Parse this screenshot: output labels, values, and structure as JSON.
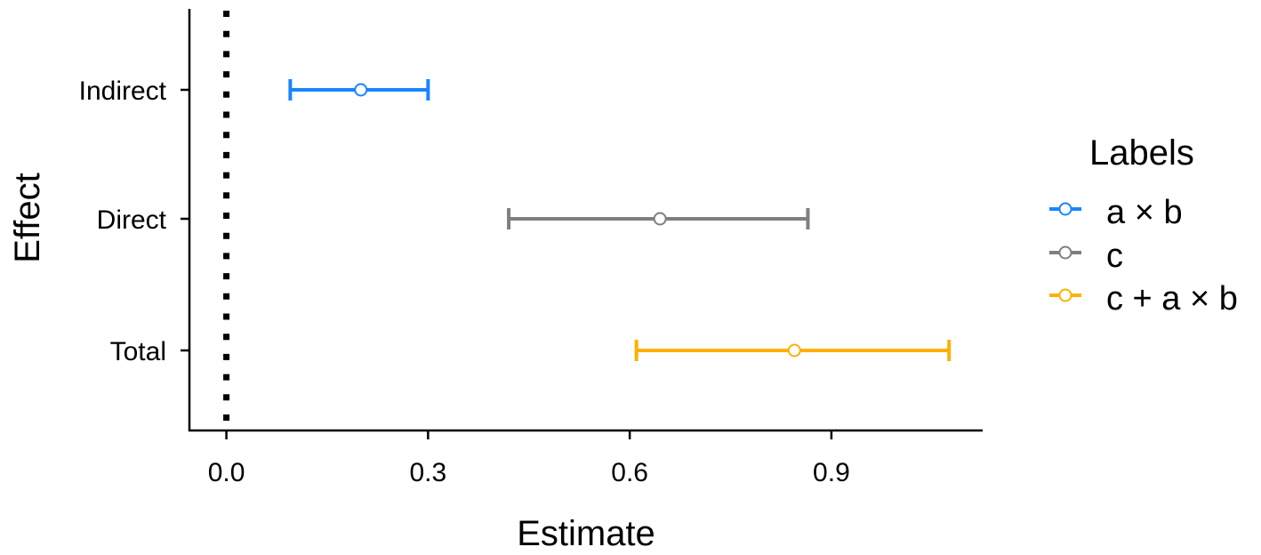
{
  "chart_data": {
    "type": "forest",
    "title": "",
    "xlabel": "Estimate",
    "ylabel": "Effect",
    "xlim": [
      -0.055,
      1.125
    ],
    "xticks": [
      0.0,
      0.3,
      0.6,
      0.9
    ],
    "xtick_labels": [
      "0.0",
      "0.3",
      "0.6",
      "0.9"
    ],
    "reference_line": 0.0,
    "categories": [
      "Indirect",
      "Direct",
      "Total"
    ],
    "series": [
      {
        "category": "Indirect",
        "name": "a × b",
        "estimate": 0.2,
        "lower": 0.095,
        "upper": 0.3,
        "color": "#1a85ff"
      },
      {
        "category": "Direct",
        "name": "c",
        "estimate": 0.645,
        "lower": 0.42,
        "upper": 0.865,
        "color": "#7f7f7f"
      },
      {
        "category": "Total",
        "name": "c + a × b",
        "estimate": 0.845,
        "lower": 0.61,
        "upper": 1.075,
        "color": "#ffb000"
      }
    ],
    "legend": {
      "title": "Labels",
      "position": "right"
    },
    "grid": false
  }
}
